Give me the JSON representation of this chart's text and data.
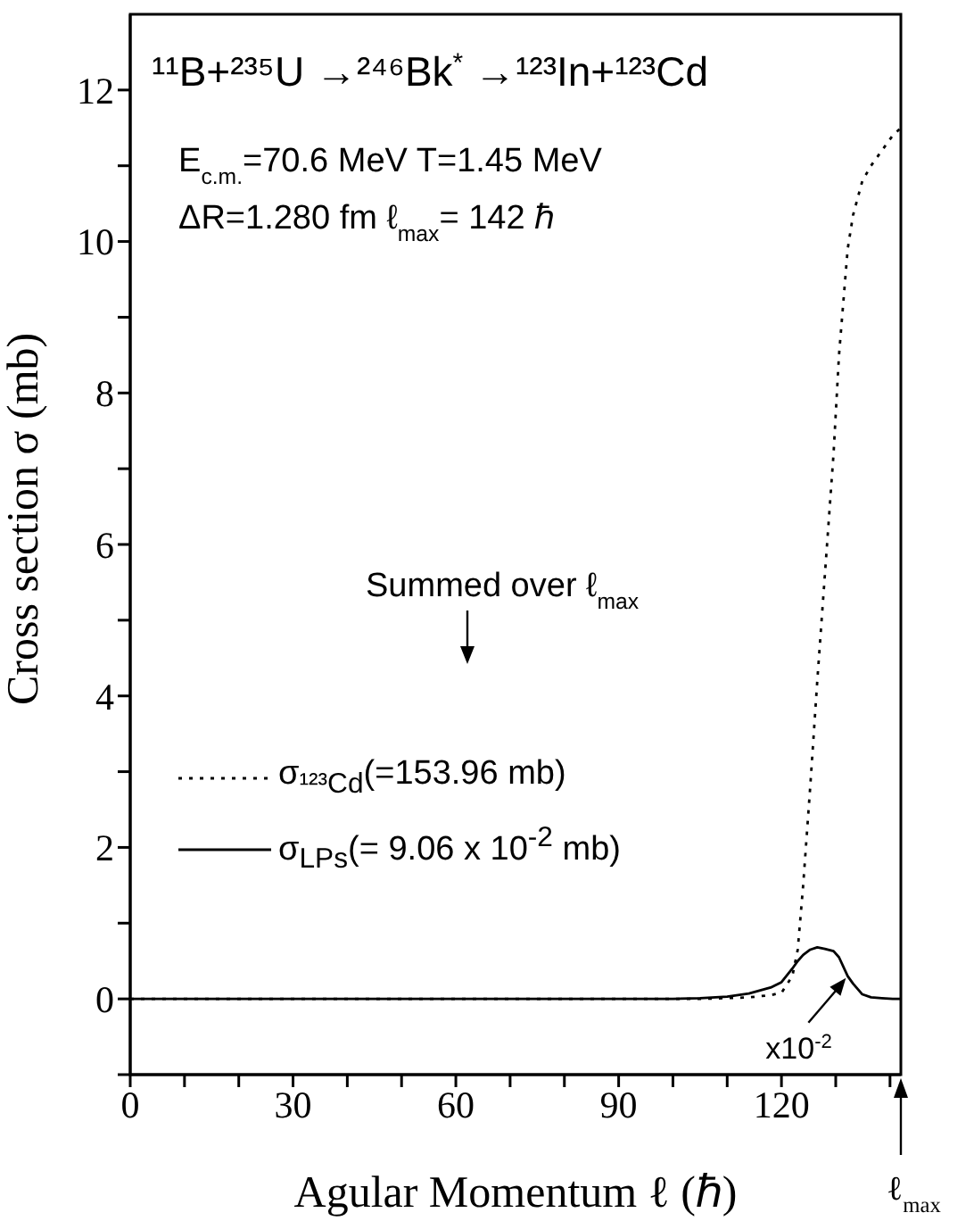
{
  "chart_data": {
    "type": "line",
    "title": "¹¹B+²³⁵U →²⁴⁶Bk$^{*}$ →¹²³In+¹²³Cd",
    "xlabel": "Agular Momentum ℓ (ℏ)",
    "ylabel": "Cross section σ (mb)",
    "annotations": [
      "E$_{c.m.}$=70.6 MeV  T=1.45 MeV",
      "ΔR=1.280 fm   ℓ$_{max}$= 142 ℏ",
      "Summed over ℓ$_{max}$",
      {
        "text": "x10$^{-2}$",
        "x": 132.2,
        "y": 0.3
      },
      "ℓ$_{max}$"
    ],
    "x": [
      0,
      20,
      40,
      60,
      80,
      100,
      105,
      110,
      114,
      118,
      120,
      122,
      123,
      124,
      125.3,
      126.6,
      128,
      129.6,
      130.6,
      132.2,
      133.2,
      134.9,
      136.5,
      138.5,
      140.5,
      142
    ],
    "series": [
      {
        "name": "σ$_{¹²³Cd}$(=153.96 mb)",
        "color": "#000000",
        "line_style": "dotted",
        "values": [
          0,
          0,
          0,
          0,
          0,
          0,
          0,
          0.01,
          0.02,
          0.05,
          0.08,
          0.3,
          0.65,
          1.5,
          2.8,
          4.2,
          5.6,
          7.2,
          8.5,
          9.9,
          10.35,
          10.8,
          11.0,
          11.2,
          11.4,
          11.5
        ]
      },
      {
        "name": "σ$_{LPs}$(= 9.06 x 10$^{-2}$ mb)",
        "color": "#000000",
        "line_style": "solid",
        "values": [
          0,
          0,
          0,
          0,
          0,
          0,
          0.01,
          0.03,
          0.07,
          0.15,
          0.22,
          0.4,
          0.5,
          0.58,
          0.65,
          0.68,
          0.66,
          0.63,
          0.55,
          0.3,
          0.2,
          0.06,
          0.02,
          0.01,
          0,
          0
        ]
      }
    ],
    "xlim": [
      0,
      142
    ],
    "xticks": [
      0,
      {
        "value": 10,
        "label": null
      },
      {
        "value": 20,
        "label": null
      },
      30,
      {
        "value": 40,
        "label": null
      },
      {
        "value": 50,
        "label": null
      },
      60,
      {
        "value": 70,
        "label": null
      },
      {
        "value": 80,
        "label": null
      },
      90,
      {
        "value": 100,
        "label": null
      },
      {
        "value": 110,
        "label": null
      },
      120,
      {
        "value": 130,
        "label": null
      },
      {
        "value": 140,
        "label": null
      }
    ],
    "ylim": [
      -1,
      13
    ],
    "yticks": [
      {
        "value": -1,
        "label": null
      },
      0,
      {
        "value": 1,
        "label": null
      },
      2,
      {
        "value": 3,
        "label": null
      },
      4,
      {
        "value": 5,
        "label": null
      },
      6,
      {
        "value": 7,
        "label": null
      },
      8,
      {
        "value": 9,
        "label": null
      },
      10,
      {
        "value": 11,
        "label": null
      },
      12
    ],
    "grid": false,
    "legend": "center left",
    "marker": "none"
  }
}
